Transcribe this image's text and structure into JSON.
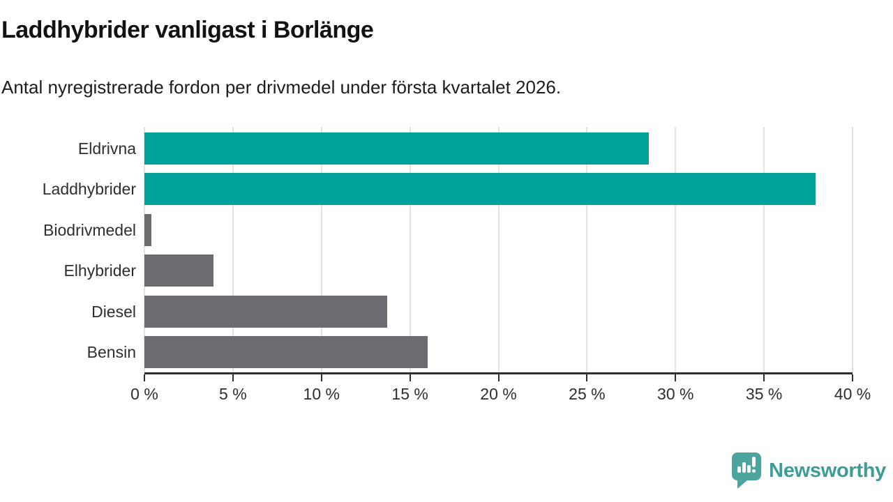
{
  "header": {
    "title": "Laddhybrider vanligast i Borlänge",
    "subtitle": "Antal nyregistrerade fordon per drivmedel under första kvartalet 2026."
  },
  "chart_data": {
    "type": "bar",
    "orientation": "horizontal",
    "title": "Laddhybrider vanligast i Borlänge",
    "subtitle": "Antal nyregistrerade fordon per drivmedel under första kvartalet 2026.",
    "categories": [
      "Eldrivna",
      "Laddhybrider",
      "Biodrivmedel",
      "Elhybrider",
      "Diesel",
      "Bensin"
    ],
    "values": [
      28.5,
      37.9,
      0.4,
      3.9,
      13.7,
      16.0
    ],
    "unit": "%",
    "xlim": [
      0,
      40
    ],
    "x_ticks": [
      0,
      5,
      10,
      15,
      20,
      25,
      30,
      35,
      40
    ],
    "x_tick_labels": [
      "0 %",
      "5 %",
      "10 %",
      "15 %",
      "20 %",
      "25 %",
      "30 %",
      "35 %",
      "40 %"
    ],
    "bar_colors": [
      "#00a29a",
      "#00a29a",
      "#6b6b70",
      "#6b6b70",
      "#6b6b70",
      "#6b6b70"
    ],
    "highlight_color": "#00a29a",
    "default_color": "#6b6b70",
    "grid": true,
    "legend": "none"
  },
  "footer": {
    "brand": "Newsworthy",
    "brand_color": "#3d9d96",
    "logo_color": "#4ba49e",
    "logo_icon": "speech-bubble-bar-chart-exclamation"
  }
}
